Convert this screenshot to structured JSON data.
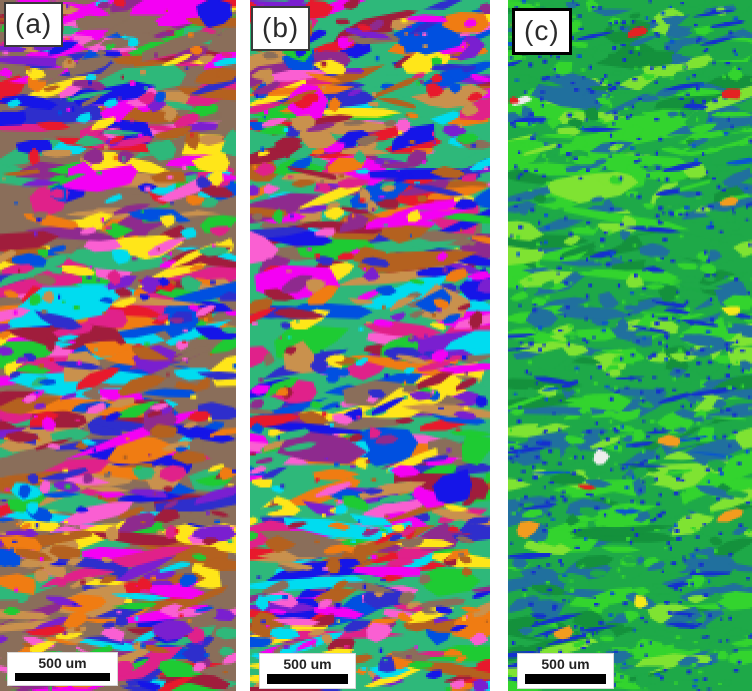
{
  "figure": {
    "panels": [
      {
        "id": "a",
        "label": "(a)",
        "scale_label": "500 um",
        "map_type": "random-grain",
        "palette": [
          "#e8192c",
          "#1515e8",
          "#2e2ecc",
          "#00dcf0",
          "#f400f4",
          "#fa5fd2",
          "#e0218a",
          "#f07c12",
          "#ffe619",
          "#1ecb33",
          "#2eb87a",
          "#b4611f",
          "#c9914d",
          "#8e2a8e",
          "#7a1fd0",
          "#a01d3c",
          "#8a6e5a",
          "#0050e0"
        ]
      },
      {
        "id": "b",
        "label": "(b)",
        "scale_label": "500 um",
        "map_type": "random-grain",
        "palette": [
          "#e8192c",
          "#1515e8",
          "#2e2ecc",
          "#00dcf0",
          "#f400f4",
          "#fa5fd2",
          "#e0218a",
          "#f07c12",
          "#ffe619",
          "#1ecb33",
          "#2eb87a",
          "#b4611f",
          "#c9914d",
          "#8e2a8e",
          "#7a1fd0",
          "#a01d3c",
          "#8a6e5a",
          "#0050e0"
        ]
      },
      {
        "id": "c",
        "label": "(c)",
        "scale_label": "500 um",
        "map_type": "ipf-green-blue",
        "background": "#1ea948",
        "palette": [
          {
            "color": "#1ea948",
            "weight": 6
          },
          {
            "color": "#33d42e",
            "weight": 5
          },
          {
            "color": "#20709e",
            "weight": 5
          },
          {
            "color": "#7fe332",
            "weight": 2
          },
          {
            "color": "#14913c",
            "weight": 2
          }
        ],
        "speckles": [
          {
            "color": "#1430cf",
            "weight": 6
          },
          {
            "color": "#33d42e",
            "weight": 2
          },
          {
            "color": "#0a57d0",
            "weight": 1
          }
        ],
        "accents": [
          "#f39c1e",
          "#f5ea1a",
          "#e32222",
          "#ededed"
        ]
      }
    ]
  }
}
